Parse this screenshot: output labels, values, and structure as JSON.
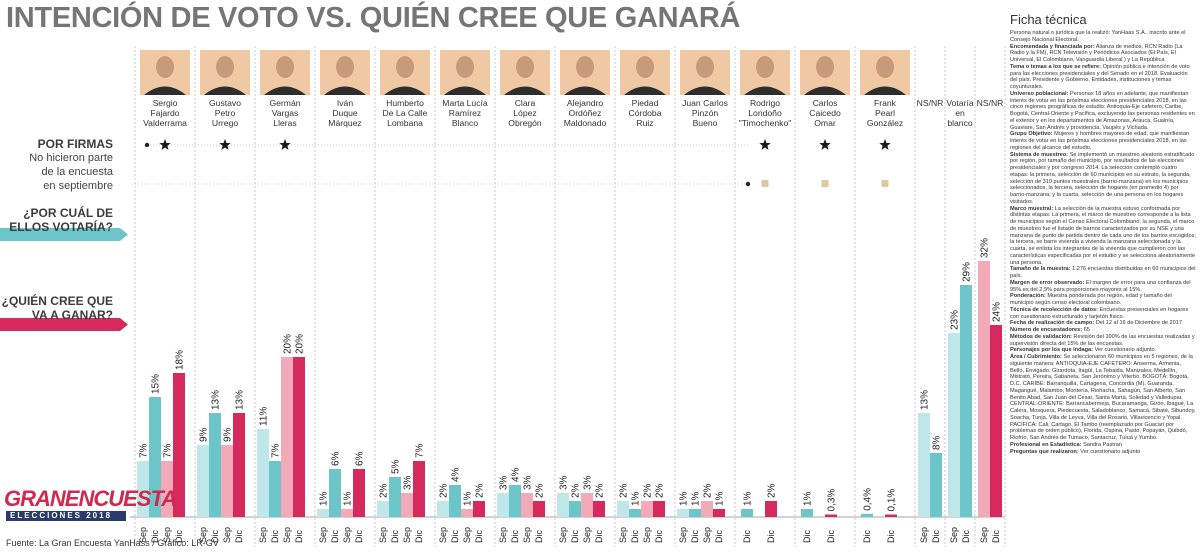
{
  "title": "INTENCIÓN DE VOTO VS. QUIÉN CREE QUE GANARÁ",
  "labels": {
    "por_firmas": "POR FIRMAS",
    "no_encuesta": [
      "No hicieron parte",
      "de la encuesta",
      "en septiembre"
    ],
    "votaria": [
      "¿POR CUÁL DE",
      "ELLOS VOTARÍA?"
    ],
    "ganara": [
      "¿QUIÉN CREE QUE",
      "VA A GANAR?"
    ]
  },
  "colors": {
    "votaria": "#6cc5c8",
    "votaria_light": "#bfe6e8",
    "ganara": "#d62a5e",
    "ganara_light": "#f2aab8",
    "band_teal": "#6cc5c8",
    "band_red": "#d62a5e",
    "beige": "#dfc8a0",
    "photo_bg": "#f0c9a4"
  },
  "chart_data": {
    "type": "bar",
    "title": "INTENCIÓN DE VOTO VS. QUIÉN CREE QUE GANARÁ",
    "series_note": "Per candidate: votaría Sep, votaría Dic, ganará Sep, ganará Dic",
    "ylim": [
      0,
      34
    ],
    "candidates": [
      {
        "name": [
          "Sergio",
          "Fajardo",
          "Valderrama"
        ],
        "firmas": true,
        "values": [
          7,
          15,
          7,
          18
        ],
        "periods": [
          "Sep",
          "Dic",
          "Sep",
          "Dic"
        ]
      },
      {
        "name": [
          "Gustavo",
          "Petro",
          "Urrego"
        ],
        "firmas": true,
        "values": [
          9,
          13,
          9,
          13
        ],
        "periods": [
          "Sep",
          "Dic",
          "Sep",
          "Dic"
        ]
      },
      {
        "name": [
          "Germán",
          "Vargas",
          "Lleras"
        ],
        "firmas": true,
        "values": [
          11,
          7,
          20,
          20
        ],
        "periods": [
          "Sep",
          "Dic",
          "Sep",
          "Dic"
        ]
      },
      {
        "name": [
          "Iván",
          "Duque",
          "Márquez"
        ],
        "firmas": false,
        "values": [
          1,
          6,
          1,
          6
        ],
        "periods": [
          "Sep",
          "Dic",
          "Sep",
          "Dic"
        ]
      },
      {
        "name": [
          "Humberto",
          "De La Calle",
          "Lombana"
        ],
        "firmas": false,
        "values": [
          2,
          5,
          3,
          7
        ],
        "periods": [
          "Sep",
          "Dic",
          "Sep",
          "Dic"
        ]
      },
      {
        "name": [
          "Marta Lucía",
          "Ramírez",
          "Blanco"
        ],
        "firmas": false,
        "values": [
          2,
          4,
          1,
          2
        ],
        "periods": [
          "Sep",
          "Dic",
          "Sep",
          "Dic"
        ]
      },
      {
        "name": [
          "Clara",
          "López",
          "Obregón"
        ],
        "firmas": false,
        "values": [
          3,
          4,
          3,
          2
        ],
        "periods": [
          "Sep",
          "Dic",
          "Sep",
          "Dic"
        ]
      },
      {
        "name": [
          "Alejandro",
          "Ordóñez",
          "Maldonado"
        ],
        "firmas": false,
        "values": [
          3,
          2,
          3,
          2
        ],
        "periods": [
          "Sep",
          "Dic",
          "Sep",
          "Dic"
        ]
      },
      {
        "name": [
          "Piedad",
          "Córdoba",
          "Ruiz"
        ],
        "firmas": false,
        "values": [
          2,
          1,
          2,
          2
        ],
        "periods": [
          "Sep",
          "Dic",
          "Sep",
          "Dic"
        ]
      },
      {
        "name": [
          "Juan Carlos",
          "Pinzón",
          "Bueno"
        ],
        "firmas": false,
        "values": [
          1,
          1,
          2,
          1
        ],
        "periods": [
          "Sep",
          "Dic",
          "Sep",
          "Dic"
        ]
      },
      {
        "name": [
          "Rodrigo",
          "Londoño",
          "\"Timochenko\""
        ],
        "firmas": false,
        "values": [
          1,
          2
        ],
        "labels": [
          "1%",
          "2%"
        ],
        "periods": [
          "Dic",
          "Dic"
        ],
        "kinds": [
          "votaria",
          "ganara"
        ]
      },
      {
        "name": [
          "Carlos",
          "Caicedo",
          "Omar"
        ],
        "firmas": true,
        "values": [
          1,
          0.3
        ],
        "labels": [
          "1%",
          "0,3%"
        ],
        "periods": [
          "Dic",
          "Dic"
        ],
        "kinds": [
          "votaria",
          "ganara"
        ]
      },
      {
        "name": [
          "Frank",
          "Pearl",
          "González"
        ],
        "firmas": true,
        "values": [
          0.4,
          0.1
        ],
        "labels": [
          "0,4%",
          "0,1%"
        ],
        "periods": [
          "Dic",
          "Dic"
        ],
        "kinds": [
          "votaria",
          "ganara"
        ]
      },
      {
        "name": [
          "NS/NR"
        ],
        "firmas": false,
        "values": [
          13,
          8
        ],
        "periods": [
          "Sep",
          "Dic"
        ],
        "kinds": [
          "votaria",
          "votaria"
        ]
      },
      {
        "name": [
          "Votaría",
          "en",
          "blanco"
        ],
        "firmas": false,
        "values": [
          23,
          29
        ],
        "periods": [
          "Sep",
          "Dic"
        ],
        "kinds": [
          "votaria",
          "votaria"
        ]
      },
      {
        "name": [
          "NS/NR"
        ],
        "firmas": false,
        "values": [
          32,
          24
        ],
        "periods": [
          "Sep",
          "Dic"
        ],
        "kinds": [
          "ganara",
          "ganara"
        ]
      }
    ]
  },
  "ficha": {
    "title": "Ficha técnica",
    "paragraphs": [
      {
        "b": "",
        "t": "Persona natural o jurídica que la realizó: YanHaas S.A., inscrito ante el Consejo Nacional Electoral."
      },
      {
        "b": "Encomendada y financiada por:",
        "t": "Alianza de medios, RCN Radio (La Radio y la FM), RCN Televisión y Periódicos Asociados (El País, El Universal, El Colombiano, Vanguardia Liberal ) y La República"
      },
      {
        "b": "Tema o temas a los que se refiere:",
        "t": "Opinión pública e intención de voto para las elecciones presidenciales y del Senado en el 2018. Evaluación del país, Presidente y Gobierno, Entidades, instituciones y temas coyunturales."
      },
      {
        "b": "Universo poblacional:",
        "t": "Personas 18 años en adelante, que manifiestan interés de votar en las próximas elecciones presidenciales 2018, en las cinco regiones geográficas de estudio: Antioquia-Eje cafetero, Caribe, Bogotá, Central-Oriente y Pacífica, excluyendo las personas residentes en el exterior y en los departamentos de Amazonas, Arauca, Guainía, Guaviare, San Andrés y providencia, Vaupés y Vichada."
      },
      {
        "b": "Grupo Objetivo:",
        "t": "Mujeres y hombres mayores de edad, que manifiestan interés de votar en las próximas elecciones presidenciales 2018, en las regiones del alcance del estudio."
      },
      {
        "b": "Sistema de muestreo:",
        "t": "Se implementó un muestreo aleatorio estratificado por región, por tamaño del municipio, por resultados de las elecciones presidenciales y por congreso 2014. La selección contempló cuatro etapas: la primera, selección de 60 municipios en su estrato, la segunda, selección de 319 puntos muestrales (barrio-manzana) en los municipios seleccionados, la tercera, selección de hogares (en promedio 4) por barrio-manzana; y la cuarta, selección de una persona en los hogares visitados."
      },
      {
        "b": "Marco muestral:",
        "t": "La selección de la muestra estuvo conformada por distintas etapas: La primera, el marco de muestreo corresponde a la lista de municipios según el Censo Electoral Colombiano; la segunda, el marco de muestreo fue el listado de barrios caracterizados por su NSE y una manzana de punto de partida dentro de cada uno de los barrios escogidos; la tercera, se barre vivienda a vivienda la manzana seleccionada y la cuarta, se enlista los integrantes de la vivienda que cumplieron con las características especificadas por el estudio y se selecciona aleatoriamente una persona."
      },
      {
        "b": "Tamaño de la muestra:",
        "t": "1.276 encuestas distribuidas en 60 municipios del país."
      },
      {
        "b": "Margen de error observado:",
        "t": "El margen de error para una confianza del 95% es del 2,9% para proporciones mayores al 15%."
      },
      {
        "b": "Ponderación:",
        "t": "Muestra ponderada por región, edad y tamaño del municipio según censo electoral colombiano."
      },
      {
        "b": "Técnica de recolección de datos:",
        "t": "Encuestas presenciales en hogares con cuestionario estructurado y tarjetón físico."
      },
      {
        "b": "Fecha de realización de campo:",
        "t": "Del 12 al 16 de Diciembre de 2017"
      },
      {
        "b": "Número de encuestadores:",
        "t": "65"
      },
      {
        "b": "Métodos de validación:",
        "t": "Revisión del 100% de las encuestas realizadas y supervisión directa del 15% de las encuestas."
      },
      {
        "b": "Personajes por los que indaga:",
        "t": "Ver cuestionario adjunto."
      },
      {
        "b": "Área / Cubrimiento:",
        "t": "Se seleccionaron 60 municipios en 5 regiones, de la siguiente manera: ANTIOQUIA-EJE CAFETERO: Anserma, Armenia, Bello, Envigado, Girardota, Itagüí, La Tebaida, Manizales, Medellín, Mistrató, Pereira, Sabaneta, San Jerónimo y Viterbo. BOGOTÁ: Bogotá, D.C. CARIBE: Barranquilla, Cartagena, Concordia (M), Guaranda, Magangué, Malambo, Montería, Riohacha, Sahagún, San Alberto, San Benito Abad, San Juan del Cesar, Santa Marta, Soledad y Valledupar. CENTRAL-ORIENTE: Barrancabermeja, Bucaramanga, Girón, Ibagué, La Calera, Mosquera, Piedecuesta, Saladoblanco, Samacá, Sibaté, Sibundoy, Soacha, Tunja, Villa de Leyva, Villa del Rosario, Villavicencio y Yopal. PACÍFICA: Cali, Cartago, El Tambo (reemplazado por Guacarí por problemas de orden público), Florida, Ospina, Pasto, Popayán, Quibdó, Riofrío, San Andrés de Tumaco, Santacruz, Tuluá y Yumbo."
      },
      {
        "b": "Profesional en Estadística:",
        "t": "Sandra Pastran"
      },
      {
        "b": "Preguntas que realizaron:",
        "t": "Ver cuestionario adjunto"
      }
    ]
  },
  "logo": {
    "top": "GRANENCUESTA",
    "sub": "ELECCIONES 2018"
  },
  "source": "Fuente: La Gran Encuesta YanHass / Gráfico: LR-GV"
}
